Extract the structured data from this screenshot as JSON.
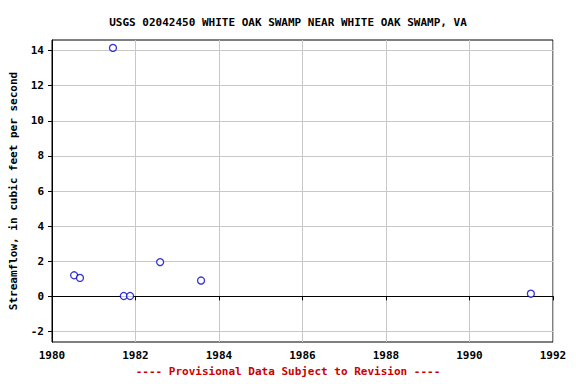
{
  "chart_data": {
    "type": "scatter",
    "title": "USGS 02042450 WHITE OAK SWAMP NEAR WHITE OAK SWAMP, VA",
    "y_label": "Streamflow, in cubic feet per second",
    "annotations": [
      "---- Provisional Data Subject to Revision ----"
    ],
    "x": [
      1980.53,
      1980.67,
      1981.46,
      1981.72,
      1981.87,
      1982.59,
      1983.57,
      1991.47
    ],
    "values": [
      1.2,
      1.05,
      14.15,
      0.02,
      0.02,
      1.95,
      0.9,
      0.15
    ],
    "color": "#0000cc",
    "marker": "open_circle",
    "xlim": [
      1980,
      1992
    ],
    "xticks": [
      1980,
      1982,
      1984,
      1986,
      1988,
      1990,
      1992
    ],
    "ylim": [
      -2.6,
      14.6
    ],
    "yticks": [
      -2,
      0,
      2,
      4,
      6,
      8,
      10,
      12,
      14
    ],
    "grid": true
  }
}
